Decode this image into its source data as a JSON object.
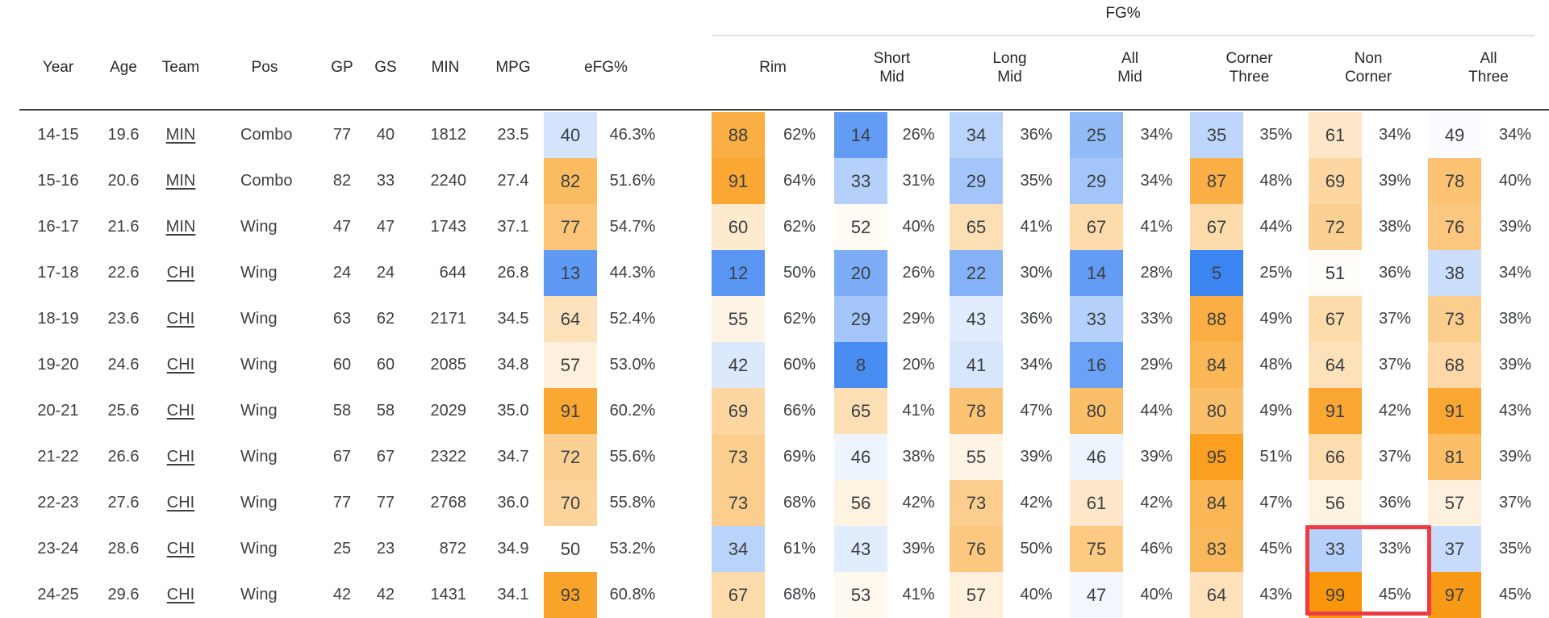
{
  "chart_data": {
    "type": "table",
    "group_header": "FG%",
    "columns": {
      "year": "Year",
      "age": "Age",
      "team": "Team",
      "pos": "Pos",
      "gp": "GP",
      "gs": "GS",
      "min": "MIN",
      "mpg": "MPG",
      "efg": "eFG%",
      "rim": "Rim",
      "short_mid": "Short\nMid",
      "long_mid": "Long\nMid",
      "all_mid": "All\nMid",
      "corner_three": "Corner\nThree",
      "non_corner": "Non\nCorner",
      "all_three": "All\nThree"
    },
    "rows": [
      {
        "year": "14-15",
        "age": "19.6",
        "team": "MIN",
        "pos": "Combo",
        "gp": "77",
        "gs": "40",
        "min": "1812",
        "mpg": "23.5",
        "efg": {
          "pct": 40,
          "val": "46.3%"
        },
        "rim": {
          "pct": 88,
          "val": "62%"
        },
        "short_mid": {
          "pct": 14,
          "val": "26%"
        },
        "long_mid": {
          "pct": 34,
          "val": "36%"
        },
        "all_mid": {
          "pct": 25,
          "val": "34%"
        },
        "corner_three": {
          "pct": 35,
          "val": "35%"
        },
        "non_corner": {
          "pct": 61,
          "val": "34%"
        },
        "all_three": {
          "pct": 49,
          "val": "34%"
        }
      },
      {
        "year": "15-16",
        "age": "20.6",
        "team": "MIN",
        "pos": "Combo",
        "gp": "82",
        "gs": "33",
        "min": "2240",
        "mpg": "27.4",
        "efg": {
          "pct": 82,
          "val": "51.6%"
        },
        "rim": {
          "pct": 91,
          "val": "64%"
        },
        "short_mid": {
          "pct": 33,
          "val": "31%"
        },
        "long_mid": {
          "pct": 29,
          "val": "35%"
        },
        "all_mid": {
          "pct": 29,
          "val": "34%"
        },
        "corner_three": {
          "pct": 87,
          "val": "48%"
        },
        "non_corner": {
          "pct": 69,
          "val": "39%"
        },
        "all_three": {
          "pct": 78,
          "val": "40%"
        }
      },
      {
        "year": "16-17",
        "age": "21.6",
        "team": "MIN",
        "pos": "Wing",
        "gp": "47",
        "gs": "47",
        "min": "1743",
        "mpg": "37.1",
        "efg": {
          "pct": 77,
          "val": "54.7%"
        },
        "rim": {
          "pct": 60,
          "val": "62%"
        },
        "short_mid": {
          "pct": 52,
          "val": "40%"
        },
        "long_mid": {
          "pct": 65,
          "val": "41%"
        },
        "all_mid": {
          "pct": 67,
          "val": "41%"
        },
        "corner_three": {
          "pct": 67,
          "val": "44%"
        },
        "non_corner": {
          "pct": 72,
          "val": "38%"
        },
        "all_three": {
          "pct": 76,
          "val": "39%"
        }
      },
      {
        "year": "17-18",
        "age": "22.6",
        "team": "CHI",
        "pos": "Wing",
        "gp": "24",
        "gs": "24",
        "min": "644",
        "mpg": "26.8",
        "efg": {
          "pct": 13,
          "val": "44.3%"
        },
        "rim": {
          "pct": 12,
          "val": "50%"
        },
        "short_mid": {
          "pct": 20,
          "val": "26%"
        },
        "long_mid": {
          "pct": 22,
          "val": "30%"
        },
        "all_mid": {
          "pct": 14,
          "val": "28%"
        },
        "corner_three": {
          "pct": 5,
          "val": "25%"
        },
        "non_corner": {
          "pct": 51,
          "val": "36%"
        },
        "all_three": {
          "pct": 38,
          "val": "34%"
        }
      },
      {
        "year": "18-19",
        "age": "23.6",
        "team": "CHI",
        "pos": "Wing",
        "gp": "63",
        "gs": "62",
        "min": "2171",
        "mpg": "34.5",
        "efg": {
          "pct": 64,
          "val": "52.4%"
        },
        "rim": {
          "pct": 55,
          "val": "62%"
        },
        "short_mid": {
          "pct": 29,
          "val": "29%"
        },
        "long_mid": {
          "pct": 43,
          "val": "36%"
        },
        "all_mid": {
          "pct": 33,
          "val": "33%"
        },
        "corner_three": {
          "pct": 88,
          "val": "49%"
        },
        "non_corner": {
          "pct": 67,
          "val": "37%"
        },
        "all_three": {
          "pct": 73,
          "val": "38%"
        }
      },
      {
        "year": "19-20",
        "age": "24.6",
        "team": "CHI",
        "pos": "Wing",
        "gp": "60",
        "gs": "60",
        "min": "2085",
        "mpg": "34.8",
        "efg": {
          "pct": 57,
          "val": "53.0%"
        },
        "rim": {
          "pct": 42,
          "val": "60%"
        },
        "short_mid": {
          "pct": 8,
          "val": "20%"
        },
        "long_mid": {
          "pct": 41,
          "val": "34%"
        },
        "all_mid": {
          "pct": 16,
          "val": "29%"
        },
        "corner_three": {
          "pct": 84,
          "val": "48%"
        },
        "non_corner": {
          "pct": 64,
          "val": "37%"
        },
        "all_three": {
          "pct": 68,
          "val": "39%"
        }
      },
      {
        "year": "20-21",
        "age": "25.6",
        "team": "CHI",
        "pos": "Wing",
        "gp": "58",
        "gs": "58",
        "min": "2029",
        "mpg": "35.0",
        "efg": {
          "pct": 91,
          "val": "60.2%"
        },
        "rim": {
          "pct": 69,
          "val": "66%"
        },
        "short_mid": {
          "pct": 65,
          "val": "41%"
        },
        "long_mid": {
          "pct": 78,
          "val": "47%"
        },
        "all_mid": {
          "pct": 80,
          "val": "44%"
        },
        "corner_three": {
          "pct": 80,
          "val": "49%"
        },
        "non_corner": {
          "pct": 91,
          "val": "42%"
        },
        "all_three": {
          "pct": 91,
          "val": "43%"
        }
      },
      {
        "year": "21-22",
        "age": "26.6",
        "team": "CHI",
        "pos": "Wing",
        "gp": "67",
        "gs": "67",
        "min": "2322",
        "mpg": "34.7",
        "efg": {
          "pct": 72,
          "val": "55.6%"
        },
        "rim": {
          "pct": 73,
          "val": "69%"
        },
        "short_mid": {
          "pct": 46,
          "val": "38%"
        },
        "long_mid": {
          "pct": 55,
          "val": "39%"
        },
        "all_mid": {
          "pct": 46,
          "val": "39%"
        },
        "corner_three": {
          "pct": 95,
          "val": "51%"
        },
        "non_corner": {
          "pct": 66,
          "val": "37%"
        },
        "all_three": {
          "pct": 81,
          "val": "39%"
        }
      },
      {
        "year": "22-23",
        "age": "27.6",
        "team": "CHI",
        "pos": "Wing",
        "gp": "77",
        "gs": "77",
        "min": "2768",
        "mpg": "36.0",
        "efg": {
          "pct": 70,
          "val": "55.8%"
        },
        "rim": {
          "pct": 73,
          "val": "68%"
        },
        "short_mid": {
          "pct": 56,
          "val": "42%"
        },
        "long_mid": {
          "pct": 73,
          "val": "42%"
        },
        "all_mid": {
          "pct": 61,
          "val": "42%"
        },
        "corner_three": {
          "pct": 84,
          "val": "47%"
        },
        "non_corner": {
          "pct": 56,
          "val": "36%"
        },
        "all_three": {
          "pct": 57,
          "val": "37%"
        }
      },
      {
        "year": "23-24",
        "age": "28.6",
        "team": "CHI",
        "pos": "Wing",
        "gp": "25",
        "gs": "23",
        "min": "872",
        "mpg": "34.9",
        "efg": {
          "pct": 50,
          "val": "53.2%"
        },
        "rim": {
          "pct": 34,
          "val": "61%"
        },
        "short_mid": {
          "pct": 43,
          "val": "39%"
        },
        "long_mid": {
          "pct": 76,
          "val": "50%"
        },
        "all_mid": {
          "pct": 75,
          "val": "46%"
        },
        "corner_three": {
          "pct": 83,
          "val": "45%"
        },
        "non_corner": {
          "pct": 33,
          "val": "33%"
        },
        "all_three": {
          "pct": 37,
          "val": "35%"
        }
      },
      {
        "year": "24-25",
        "age": "29.6",
        "team": "CHI",
        "pos": "Wing",
        "gp": "42",
        "gs": "42",
        "min": "1431",
        "mpg": "34.1",
        "efg": {
          "pct": 93,
          "val": "60.8%"
        },
        "rim": {
          "pct": 67,
          "val": "68%"
        },
        "short_mid": {
          "pct": 53,
          "val": "41%"
        },
        "long_mid": {
          "pct": 57,
          "val": "40%"
        },
        "all_mid": {
          "pct": 47,
          "val": "40%"
        },
        "corner_three": {
          "pct": 64,
          "val": "43%"
        },
        "non_corner": {
          "pct": 99,
          "val": "45%"
        },
        "all_three": {
          "pct": 97,
          "val": "45%"
        }
      }
    ]
  },
  "highlight": {
    "column": "Non Corner",
    "rows": [
      "23-24",
      "24-25"
    ],
    "color": "#ec3b43"
  },
  "colors": {
    "percentile_high": "#f99407",
    "percentile_low": "#2676f0",
    "percentile_mid": "#ffffff",
    "header_rule": "#3a3b3d",
    "group_rule": "#e2e2e2",
    "text": "#3c4043"
  }
}
